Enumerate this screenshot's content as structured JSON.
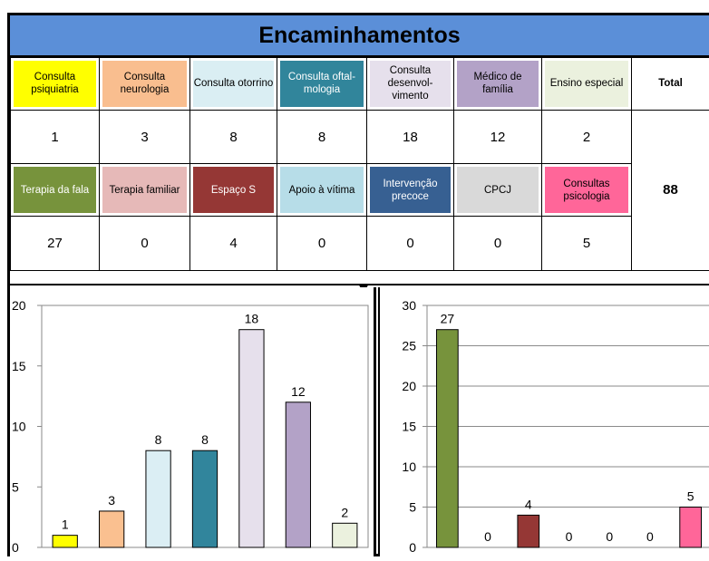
{
  "title": "Encaminhamentos",
  "total_label": "Total",
  "total_value": "88",
  "row1": [
    {
      "label": "Consulta psiquiatria",
      "value": "1",
      "color": "#ffff00"
    },
    {
      "label": "Consulta neurologia",
      "value": "3",
      "color": "#f9be8f"
    },
    {
      "label": "Consulta otorrino",
      "value": "8",
      "color": "#daeef3"
    },
    {
      "label": "Consulta oftal-mologia",
      "value": "8",
      "color": "#31859b"
    },
    {
      "label": "Consulta desenvol-vimento",
      "value": "18",
      "color": "#e6e0ec"
    },
    {
      "label": "Médico de família",
      "value": "12",
      "color": "#b3a2c7"
    },
    {
      "label": "Ensino especial",
      "value": "2",
      "color": "#ebf1de"
    }
  ],
  "row2": [
    {
      "label": "Terapia da fala",
      "value": "27",
      "color": "#77933c"
    },
    {
      "label": "Terapia familiar",
      "value": "0",
      "color": "#e6b9b8"
    },
    {
      "label": "Espaço S",
      "value": "4",
      "color": "#953735"
    },
    {
      "label": "Apoio à vítima",
      "value": "0",
      "color": "#b7dde8"
    },
    {
      "label": "Intervenção precoce",
      "value": "0",
      "color": "#376092"
    },
    {
      "label": "CPCJ",
      "value": "0",
      "color": "#d9d9d9"
    },
    {
      "label": "Consultas psicologia",
      "value": "5",
      "color": "#ff6699"
    }
  ],
  "chart_data": [
    {
      "type": "bar",
      "categories": [
        "Consulta psiquiatria",
        "Consulta neurologia",
        "Consulta otorrino",
        "Consulta oftal-mologia",
        "Consulta desenvol-vimento",
        "Médico de família",
        "Ensino especial"
      ],
      "values": [
        1,
        3,
        8,
        8,
        18,
        12,
        2
      ],
      "colors": [
        "#ffff00",
        "#fac090",
        "#dbeef4",
        "#31859c",
        "#e6e0ec",
        "#b3a2c7",
        "#ebf1de"
      ],
      "ylim": [
        0,
        20
      ],
      "yticks": [
        "0",
        "5",
        "10",
        "15",
        "20"
      ],
      "grid": false,
      "data_labels": true
    },
    {
      "type": "bar",
      "categories": [
        "Terapia da fala",
        "Terapia familiar",
        "Espaço S",
        "Apoio à vítima",
        "Intervenção precoce",
        "CPCJ",
        "Consultas psicologia"
      ],
      "values": [
        27,
        0,
        4,
        0,
        0,
        0,
        5
      ],
      "colors": [
        "#77933c",
        "#e6b9b8",
        "#953735",
        "#b7dde8",
        "#376092",
        "#d9d9d9",
        "#ff6699"
      ],
      "ylim": [
        0,
        30
      ],
      "yticks": [
        "0",
        "5",
        "10",
        "15",
        "20",
        "25",
        "30"
      ],
      "grid": true,
      "data_labels": true
    }
  ]
}
